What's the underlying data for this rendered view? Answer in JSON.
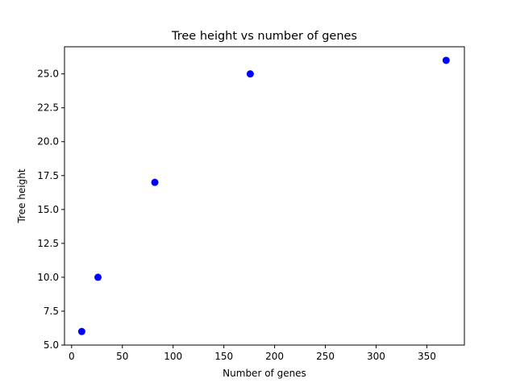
{
  "chart_data": {
    "type": "scatter",
    "title": "Tree height vs number of genes",
    "xlabel": "Number of genes",
    "ylabel": "Tree height",
    "xlim": [
      -7,
      387
    ],
    "ylim": [
      5.0,
      27.0
    ],
    "x_ticks": [
      0,
      50,
      100,
      150,
      200,
      250,
      300,
      350
    ],
    "y_ticks": [
      5.0,
      7.5,
      10.0,
      12.5,
      15.0,
      17.5,
      20.0,
      22.5,
      25.0
    ],
    "x_tick_labels": [
      "0",
      "50",
      "100",
      "150",
      "200",
      "250",
      "300",
      "350"
    ],
    "y_tick_labels": [
      "5.0",
      "7.5",
      "10.0",
      "12.5",
      "15.0",
      "17.5",
      "20.0",
      "22.5",
      "25.0"
    ],
    "grid": false,
    "marker_color": "#0000ff",
    "series": [
      {
        "x": [
          10,
          26,
          82,
          176,
          369
        ],
        "y": [
          6,
          10,
          17,
          25,
          26
        ]
      }
    ]
  }
}
